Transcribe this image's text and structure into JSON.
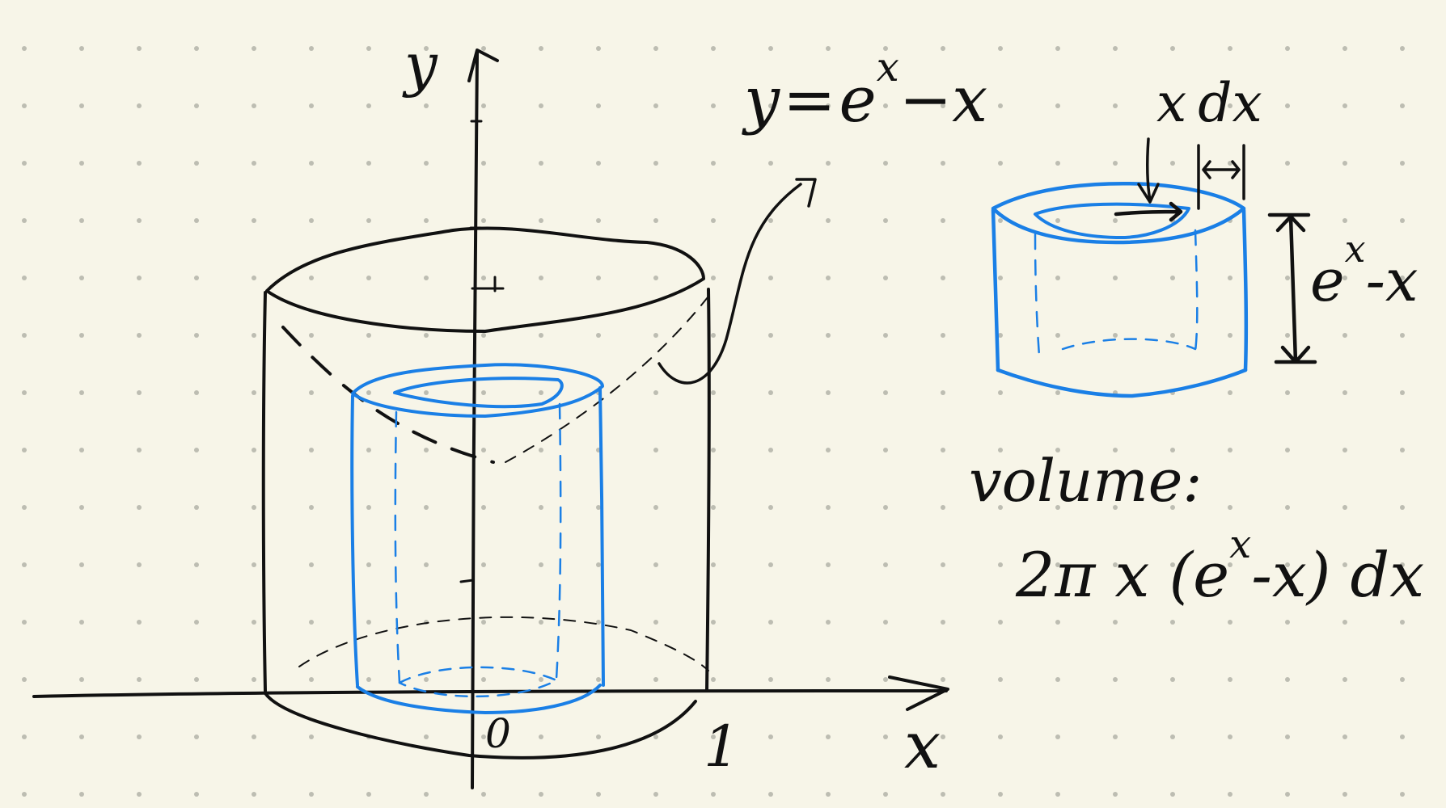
{
  "colors": {
    "background": "#f7f5e8",
    "dot_grid": "#bdbdb2",
    "ink_black": "#111111",
    "ink_blue": "#1a7fe6"
  },
  "axes": {
    "y_label": "y",
    "x_label": "x",
    "origin_label": "0",
    "x_tick_label": "1"
  },
  "curve": {
    "label_y": "y",
    "label_eq": "=",
    "label_base": "e",
    "label_exp": "x",
    "label_rest": "−x"
  },
  "shell": {
    "label_x": "x",
    "label_dx": "dx",
    "height_base": "e",
    "height_exp": "x",
    "height_rest": "-x"
  },
  "formula": {
    "volume_label": "volume:",
    "expr_prefix": "2π x (e",
    "expr_exp": "x",
    "expr_suffix": "-x) dx"
  }
}
